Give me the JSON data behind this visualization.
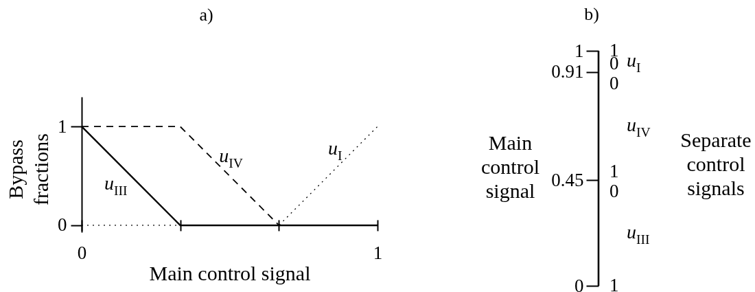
{
  "chart_data": [
    {
      "type": "line",
      "title": "a)",
      "xlabel": "Main control signal",
      "ylabel": "Bypass fractions",
      "xlim": [
        0,
        1
      ],
      "ylim": [
        -0.07,
        1.3
      ],
      "xticks": [
        0,
        {
          "value": 0.333,
          "label": null
        },
        {
          "value": 0.667,
          "label": null
        },
        1
      ],
      "yticks": [
        0,
        1
      ],
      "series": [
        {
          "name": "u$_{III}$",
          "color": "#000000",
          "line_style": "solid",
          "x": [
            0,
            0.333,
            1
          ],
          "values": [
            1,
            0,
            0
          ]
        },
        {
          "name": "u$_{IV}$",
          "color": "#000000",
          "line_style": "dashed",
          "x": [
            0,
            0.333,
            0.667,
            1
          ],
          "values": [
            1,
            1,
            0,
            0
          ]
        },
        {
          "name": "u$_{I}$",
          "color": "#000000",
          "line_style": "dotted",
          "x": [
            0,
            0.667,
            1
          ],
          "values": [
            0,
            0,
            1
          ]
        }
      ]
    },
    {
      "type": "bar",
      "stacked": true,
      "title": "b)",
      "ylabel": "Main control signal",
      "y2label": "Separate control signals",
      "categories": [
        null
      ],
      "ylim": [
        0,
        1
      ],
      "yticks": [
        0,
        0.45,
        0.91,
        1
      ],
      "tick_labels": "y",
      "series": [
        {
          "name": "u$_{III}$",
          "color": "#000000",
          "values": [
            0.45
          ]
        },
        {
          "name": "u$_{IV}$",
          "color": "#000000",
          "values": [
            0.46
          ]
        },
        {
          "name": "u$_{I}$",
          "color": "#000000",
          "values": [
            0.09
          ]
        }
      ],
      "annotations": [
        "1",
        "0",
        "0",
        "1",
        "0",
        "1"
      ]
    }
  ]
}
